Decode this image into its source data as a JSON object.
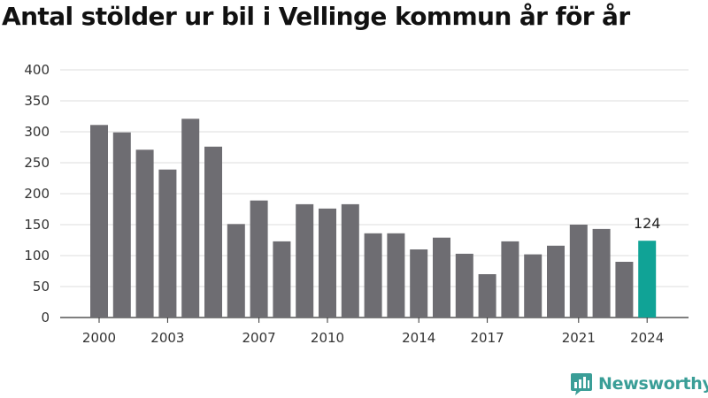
{
  "title": "Antal stölder ur bil i Vellinge kommun år för år",
  "brand": {
    "name": "Newsworthy",
    "logo_icon": "newsworthy-bar-chart-icon",
    "color": "#3a9e97"
  },
  "chart_data": {
    "type": "bar",
    "years": [
      2000,
      2001,
      2002,
      2003,
      2004,
      2005,
      2006,
      2007,
      2008,
      2009,
      2010,
      2011,
      2012,
      2013,
      2014,
      2015,
      2016,
      2017,
      2018,
      2019,
      2020,
      2021,
      2022,
      2023,
      2024
    ],
    "values": [
      311,
      299,
      271,
      239,
      321,
      276,
      151,
      189,
      123,
      183,
      176,
      183,
      136,
      136,
      110,
      129,
      103,
      70,
      123,
      102,
      116,
      150,
      143,
      90,
      124
    ],
    "x_tick_labels": [
      "2000",
      "2003",
      "2007",
      "2010",
      "2014",
      "2017",
      "2021",
      "2024"
    ],
    "y_ticks": [
      0,
      50,
      100,
      150,
      200,
      250,
      300,
      350,
      400
    ],
    "ylim": [
      0,
      400
    ],
    "grid": true,
    "colors": {
      "bar": "#6e6d72",
      "highlight": "#10a396"
    },
    "highlight_year": 2024,
    "annotation": {
      "year": 2024,
      "text": "124"
    }
  }
}
